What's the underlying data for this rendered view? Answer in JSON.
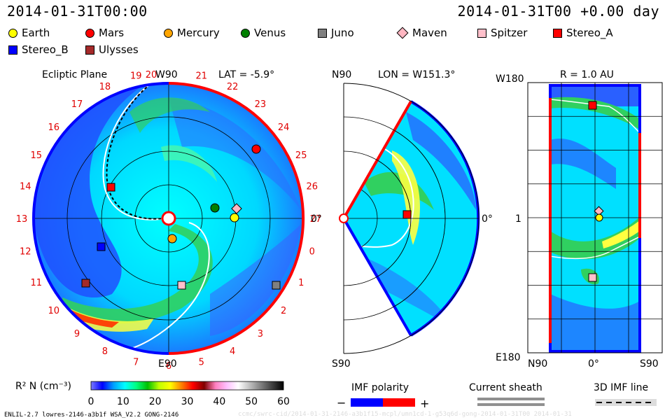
{
  "header": {
    "datetime": "2014-01-31T00:00",
    "right_label": "2014-01-31T00 +0.00 day"
  },
  "legend": [
    {
      "name": "Earth",
      "color": "#ffff00",
      "shape": "circle-icon"
    },
    {
      "name": "Mars",
      "color": "#ff0000",
      "shape": "circle-icon"
    },
    {
      "name": "Mercury",
      "color": "#ffa500",
      "shape": "circle-icon"
    },
    {
      "name": "Venus",
      "color": "#008000",
      "shape": "circle-icon"
    },
    {
      "name": "Juno",
      "color": "#808080",
      "shape": "square-icon"
    },
    {
      "name": "Maven",
      "color": "#ffb6c1",
      "shape": "diamond-icon"
    },
    {
      "name": "Spitzer",
      "color": "#ffc0cb",
      "shape": "square-icon"
    },
    {
      "name": "Stereo_A",
      "color": "#ff0000",
      "shape": "square-icon"
    },
    {
      "name": "Stereo_B",
      "color": "#0000ff",
      "shape": "square-icon"
    },
    {
      "name": "Ulysses",
      "color": "#a52a2a",
      "shape": "square-icon"
    }
  ],
  "panels": {
    "ecliptic": {
      "title": "Ecliptic Plane",
      "top_label": "W90",
      "lat_label": "LAT = -5.9°",
      "bottom_label": "E90",
      "right_label": "0°",
      "hour_labels": [
        "20",
        "21",
        "22",
        "23",
        "24",
        "25",
        "26",
        "27",
        "0",
        "1",
        "2",
        "3",
        "4",
        "5",
        "6",
        "7",
        "8",
        "9",
        "10",
        "11",
        "12",
        "13",
        "14",
        "15",
        "16",
        "17",
        "18",
        "19"
      ]
    },
    "meridional": {
      "top_left": "N90",
      "lon_label": "LON = W151.3°",
      "bottom_left": "S90",
      "right_label": "0°"
    },
    "rectangular": {
      "r_label": "R = 1.0 AU",
      "top_left": "W180",
      "mid_left": "1",
      "bottom_left": "E180",
      "bottom_n": "N90",
      "bottom_zero": "0°",
      "bottom_s": "S90"
    }
  },
  "colorbar": {
    "label": "R² N (cm⁻³)",
    "ticks": [
      "0",
      "10",
      "20",
      "30",
      "40",
      "50",
      "60"
    ],
    "stops": [
      "#7b7bff",
      "#0000ff",
      "#00a0ff",
      "#00ffff",
      "#00ff80",
      "#00c000",
      "#c0ff00",
      "#ffff00",
      "#ff8000",
      "#ff0000",
      "#800000",
      "#ff80c0",
      "#ffc0ff",
      "#ffffff",
      "#c0c0c0",
      "#808080",
      "#404040",
      "#000000"
    ]
  },
  "imf_polarity": {
    "title": "IMF polarity",
    "minus": "−",
    "plus": "+",
    "neg_color": "#0000ff",
    "pos_color": "#ff0000"
  },
  "current_sheath": {
    "title": "Current sheath"
  },
  "imf_line": {
    "title": "3D IMF line"
  },
  "footer": {
    "model": "ENLIL-2.7 lowres-2146-a3b1f WSA_V2.2 GONG-2146",
    "faint": "ccmc/swrc-cid/2014-01-31-2146-a3b1f15-mcpl/umn1cd-1-g53q6d-gong-2014-01-31T00   2014-01-31"
  }
}
